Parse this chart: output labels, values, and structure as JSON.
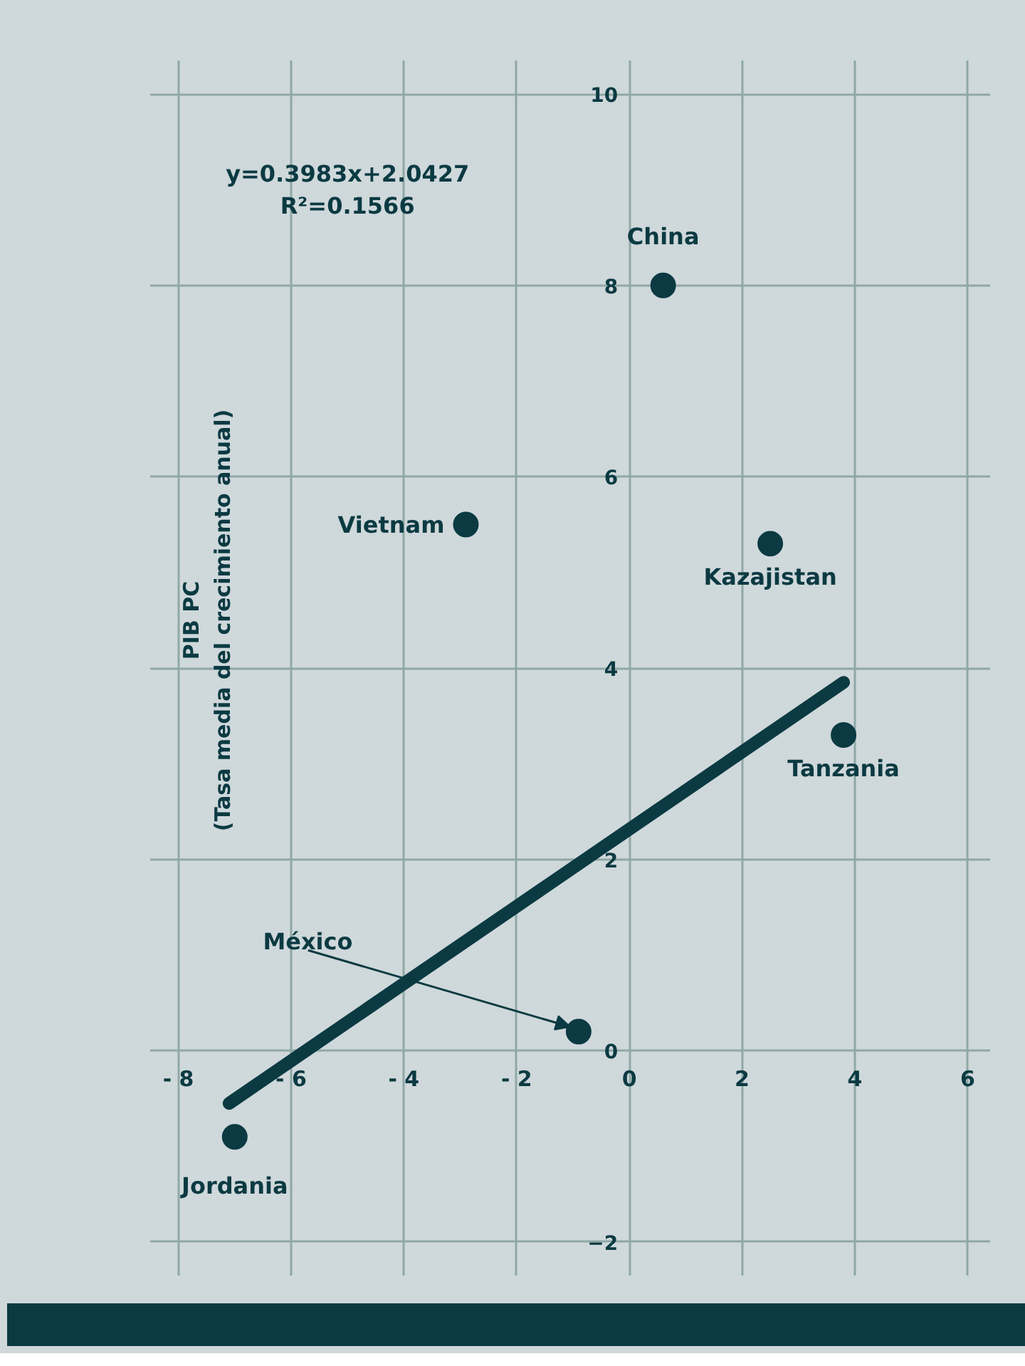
{
  "chart_data": {
    "type": "scatter",
    "ylabel": "PIB PC\n(Tasa media del crecimiento anual)",
    "series": [
      {
        "color": "#0b3a42",
        "x": [
          -7.0,
          -2.9,
          -0.9,
          0.6,
          2.5,
          3.8
        ],
        "values": [
          -0.9,
          5.5,
          0.2,
          8.0,
          5.3,
          3.3
        ]
      },
      {
        "type": "line",
        "marker": "none",
        "color": "#0b3a42",
        "x": [
          -7.1,
          3.8
        ],
        "values": [
          -0.55,
          3.85
        ]
      }
    ],
    "annotations": [
      {
        "text": "Jordania",
        "x": -7.0,
        "y": -0.9
      },
      {
        "text": "Vietnam",
        "x": -2.9,
        "y": 5.5
      },
      {
        "text": "México",
        "x": -0.9,
        "y": 0.2
      },
      {
        "text": "China",
        "x": 0.6,
        "y": 8.0
      },
      {
        "text": "Kazajistan",
        "x": 2.5,
        "y": 5.3
      },
      {
        "text": "Tanzania",
        "x": 3.8,
        "y": 3.3
      },
      "y=0.3983x+2.0427\nR²=0.1566"
    ],
    "xlim": [
      -8.5,
      6.4
    ],
    "ylim": [
      -2.35,
      10.35
    ],
    "xticks": [
      {
        "value": -8,
        "label": "- 8"
      },
      {
        "value": -6,
        "label": "- 6"
      },
      {
        "value": -4,
        "label": "- 4"
      },
      {
        "value": -2,
        "label": "- 2"
      },
      0,
      2,
      4,
      6
    ],
    "yticks": [
      -2,
      0,
      2,
      4,
      6,
      8,
      10
    ],
    "grid": true,
    "marker": "circle"
  }
}
